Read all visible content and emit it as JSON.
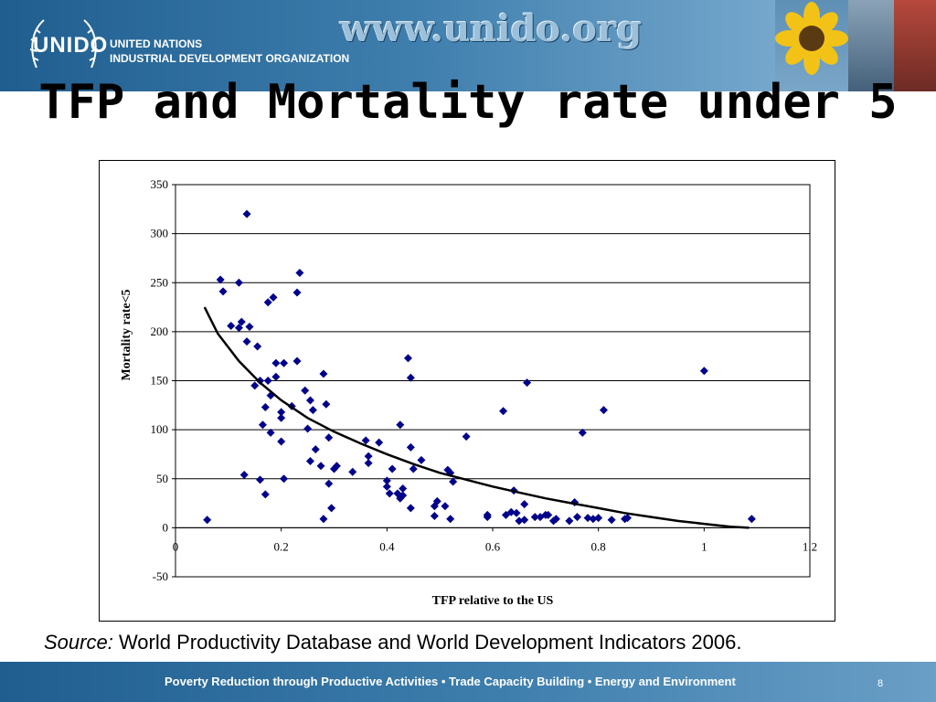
{
  "header": {
    "logo_text": "UNIDO",
    "org_line1": "UNITED NATIONS",
    "org_line2": "INDUSTRIAL DEVELOPMENT ORGANIZATION",
    "website": "www.unido.org"
  },
  "slide": {
    "title": "TFP and Mortality rate under 5"
  },
  "source": {
    "label": "Source:",
    "text": " World Productivity Database and World Development Indicators 2006."
  },
  "footer": {
    "tagline": "Poverty Reduction through Productive Activities  •  Trade Capacity Building  •  Energy and Environment",
    "page_number": "8"
  },
  "chart_data": {
    "type": "scatter",
    "title": "",
    "xlabel": "TFP relative to the US",
    "ylabel": "Mortality rate<5",
    "xlim": [
      0,
      1.2
    ],
    "ylim": [
      -50,
      350
    ],
    "x_ticks": [
      "0",
      "0.2",
      "0.4",
      "0.6",
      "0.8",
      "1",
      "1.2"
    ],
    "y_ticks": [
      "-50",
      "0",
      "50",
      "100",
      "150",
      "200",
      "250",
      "300",
      "350"
    ],
    "grid": "horizontal",
    "legend": "none",
    "marker_color": "#00008b",
    "trend_color": "#000000",
    "series": [
      {
        "points": [
          [
            0.06,
            8
          ],
          [
            0.085,
            253
          ],
          [
            0.09,
            241
          ],
          [
            0.105,
            206
          ],
          [
            0.12,
            250
          ],
          [
            0.12,
            204
          ],
          [
            0.125,
            210
          ],
          [
            0.135,
            320
          ],
          [
            0.135,
            190
          ],
          [
            0.14,
            205
          ],
          [
            0.13,
            54
          ],
          [
            0.15,
            145
          ],
          [
            0.155,
            185
          ],
          [
            0.16,
            150
          ],
          [
            0.16,
            49
          ],
          [
            0.165,
            105
          ],
          [
            0.17,
            123
          ],
          [
            0.17,
            34
          ],
          [
            0.175,
            230
          ],
          [
            0.175,
            150
          ],
          [
            0.18,
            135
          ],
          [
            0.18,
            97
          ],
          [
            0.185,
            235
          ],
          [
            0.19,
            168
          ],
          [
            0.19,
            154
          ],
          [
            0.2,
            112
          ],
          [
            0.2,
            118
          ],
          [
            0.2,
            88
          ],
          [
            0.205,
            168
          ],
          [
            0.205,
            50
          ],
          [
            0.22,
            124
          ],
          [
            0.23,
            240
          ],
          [
            0.23,
            170
          ],
          [
            0.235,
            260
          ],
          [
            0.245,
            140
          ],
          [
            0.25,
            101
          ],
          [
            0.255,
            130
          ],
          [
            0.255,
            68
          ],
          [
            0.26,
            120
          ],
          [
            0.265,
            80
          ],
          [
            0.275,
            63
          ],
          [
            0.28,
            157
          ],
          [
            0.28,
            9
          ],
          [
            0.285,
            126
          ],
          [
            0.29,
            92
          ],
          [
            0.29,
            45
          ],
          [
            0.295,
            20
          ],
          [
            0.3,
            60
          ],
          [
            0.305,
            63
          ],
          [
            0.335,
            57
          ],
          [
            0.36,
            89
          ],
          [
            0.365,
            73
          ],
          [
            0.365,
            66
          ],
          [
            0.385,
            87
          ],
          [
            0.4,
            48
          ],
          [
            0.4,
            42
          ],
          [
            0.405,
            35
          ],
          [
            0.41,
            60
          ],
          [
            0.42,
            35
          ],
          [
            0.425,
            105
          ],
          [
            0.425,
            30
          ],
          [
            0.43,
            40
          ],
          [
            0.43,
            33
          ],
          [
            0.44,
            173
          ],
          [
            0.445,
            153
          ],
          [
            0.445,
            82
          ],
          [
            0.445,
            20
          ],
          [
            0.45,
            60
          ],
          [
            0.465,
            69
          ],
          [
            0.49,
            22
          ],
          [
            0.49,
            12
          ],
          [
            0.495,
            27
          ],
          [
            0.51,
            22
          ],
          [
            0.515,
            59
          ],
          [
            0.52,
            56
          ],
          [
            0.52,
            9
          ],
          [
            0.525,
            47
          ],
          [
            0.55,
            93
          ],
          [
            0.59,
            13
          ],
          [
            0.59,
            11
          ],
          [
            0.62,
            119
          ],
          [
            0.625,
            13
          ],
          [
            0.635,
            16
          ],
          [
            0.64,
            38
          ],
          [
            0.645,
            15
          ],
          [
            0.65,
            7
          ],
          [
            0.66,
            24
          ],
          [
            0.66,
            8
          ],
          [
            0.665,
            148
          ],
          [
            0.68,
            11
          ],
          [
            0.69,
            11
          ],
          [
            0.7,
            13
          ],
          [
            0.705,
            13
          ],
          [
            0.715,
            7
          ],
          [
            0.72,
            9
          ],
          [
            0.745,
            7
          ],
          [
            0.755,
            26
          ],
          [
            0.76,
            11
          ],
          [
            0.77,
            97
          ],
          [
            0.78,
            10
          ],
          [
            0.79,
            9
          ],
          [
            0.8,
            10
          ],
          [
            0.81,
            120
          ],
          [
            0.825,
            8
          ],
          [
            0.85,
            9
          ],
          [
            0.855,
            10
          ],
          [
            1.0,
            160
          ],
          [
            1.09,
            9
          ]
        ]
      }
    ],
    "trendline": {
      "points": [
        [
          0.055,
          225
        ],
        [
          0.08,
          198
        ],
        [
          0.12,
          170
        ],
        [
          0.16,
          148
        ],
        [
          0.2,
          130
        ],
        [
          0.25,
          112
        ],
        [
          0.3,
          98
        ],
        [
          0.35,
          86
        ],
        [
          0.4,
          75
        ],
        [
          0.45,
          65
        ],
        [
          0.5,
          56
        ],
        [
          0.55,
          49
        ],
        [
          0.6,
          42
        ],
        [
          0.65,
          36
        ],
        [
          0.7,
          30
        ],
        [
          0.75,
          25
        ],
        [
          0.8,
          20
        ],
        [
          0.85,
          15
        ],
        [
          0.9,
          11
        ],
        [
          0.95,
          7
        ],
        [
          1.0,
          4
        ],
        [
          1.05,
          1
        ],
        [
          1.085,
          0
        ]
      ]
    }
  }
}
